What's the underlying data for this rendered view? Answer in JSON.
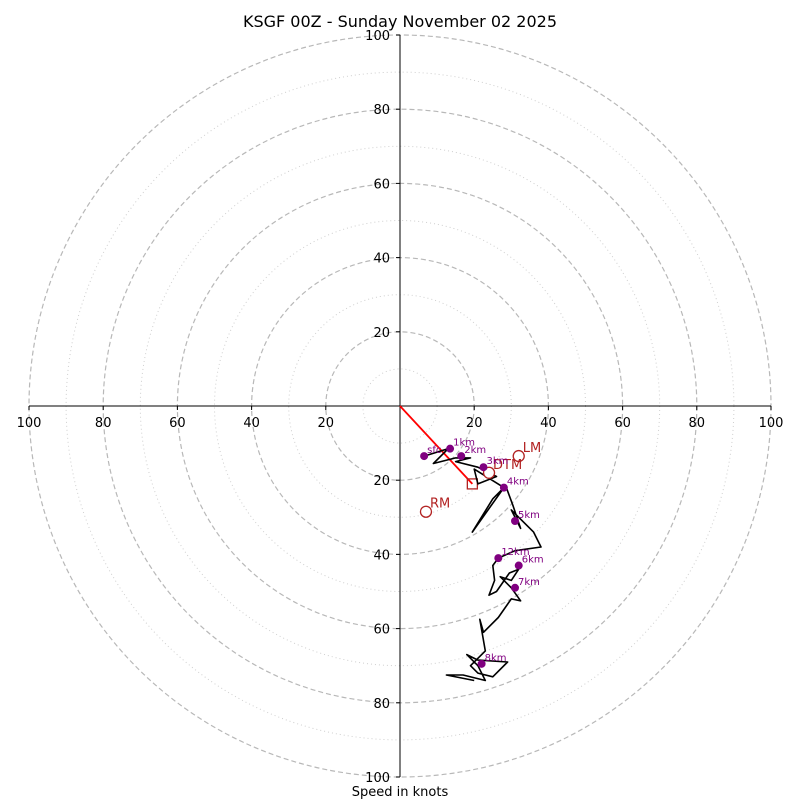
{
  "chart_data": {
    "type": "hodograph",
    "title": "KSGF 00Z - Sunday November 02 2025",
    "xlabel": "Speed in knots",
    "units": "knots",
    "rlim": [
      0,
      100
    ],
    "major_rings": [
      20,
      40,
      60,
      80,
      100
    ],
    "minor_rings": [
      10,
      30,
      50,
      70,
      90
    ],
    "tick_values": [
      100,
      80,
      60,
      40,
      20
    ],
    "up_ticks": [
      "20",
      "40",
      "60",
      "80",
      "100"
    ],
    "down_ticks": [
      "20",
      "40",
      "60",
      "80",
      "100"
    ],
    "left_ticks": [
      "100",
      "80",
      "60",
      "40",
      "20"
    ],
    "right_ticks": [
      "20",
      "40",
      "60",
      "80",
      "100"
    ],
    "trace_color": "#000000",
    "trace": [
      [
        6.5,
        -13.5
      ],
      [
        13,
        -11.5
      ],
      [
        9,
        -15.5
      ],
      [
        15,
        -14
      ],
      [
        19,
        -14
      ],
      [
        15,
        -15
      ],
      [
        21,
        -16.5
      ],
      [
        24,
        -18
      ],
      [
        26,
        -19
      ],
      [
        21,
        -21
      ],
      [
        20,
        -17
      ],
      [
        28,
        -22
      ],
      [
        19.5,
        -34
      ],
      [
        25,
        -25
      ],
      [
        28.5,
        -21.5
      ],
      [
        30.5,
        -27
      ],
      [
        32.5,
        -33
      ],
      [
        30,
        -28
      ],
      [
        36,
        -34
      ],
      [
        38,
        -38
      ],
      [
        31,
        -39
      ],
      [
        26.5,
        -41
      ],
      [
        25,
        -43
      ],
      [
        25.5,
        -47
      ],
      [
        24,
        -51
      ],
      [
        26,
        -50
      ],
      [
        29.5,
        -45
      ],
      [
        32,
        -44
      ],
      [
        30,
        -47
      ],
      [
        27,
        -46
      ],
      [
        30,
        -49
      ],
      [
        32.5,
        -52.5
      ],
      [
        30,
        -52
      ],
      [
        26.5,
        -57
      ],
      [
        22.5,
        -61
      ],
      [
        21.5,
        -57.5
      ],
      [
        23,
        -66
      ],
      [
        19,
        -70
      ],
      [
        21,
        -72
      ],
      [
        25,
        -73
      ],
      [
        29,
        -69
      ],
      [
        21,
        -68.5
      ],
      [
        18,
        -67
      ],
      [
        21,
        -70
      ],
      [
        23,
        -74
      ],
      [
        17,
        -72.5
      ],
      [
        12.5,
        -72.5
      ],
      [
        20,
        -74
      ]
    ],
    "height_markers": [
      {
        "label": "sfc",
        "x": 6.5,
        "y": -13.5
      },
      {
        "label": "1km",
        "x": 13.5,
        "y": -11.5
      },
      {
        "label": "2km",
        "x": 16.5,
        "y": -13.5
      },
      {
        "label": "3km",
        "x": 22.5,
        "y": -16.5
      },
      {
        "label": "4km",
        "x": 28,
        "y": -22
      },
      {
        "label": "5km",
        "x": 31,
        "y": -31
      },
      {
        "label": "12km",
        "x": 26.5,
        "y": -41
      },
      {
        "label": "6km",
        "x": 32,
        "y": -43
      },
      {
        "label": "7km",
        "x": 31,
        "y": -49
      },
      {
        "label": "8km",
        "x": 22,
        "y": -69.5
      }
    ],
    "motion_markers": [
      {
        "label": "LM",
        "x": 32,
        "y": -13.5
      },
      {
        "label": "RM",
        "x": 7,
        "y": -28.5
      },
      {
        "label": "DTM",
        "x": 24,
        "y": -18
      }
    ],
    "mean_wind_box": {
      "x": 19.5,
      "y": -21
    },
    "shear_vector": {
      "x1": 0,
      "y1": 0,
      "x2": 19.5,
      "y2": -21
    },
    "marker_color": "#800080",
    "motion_color": "#b22222",
    "shear_color": "#ff0000"
  }
}
